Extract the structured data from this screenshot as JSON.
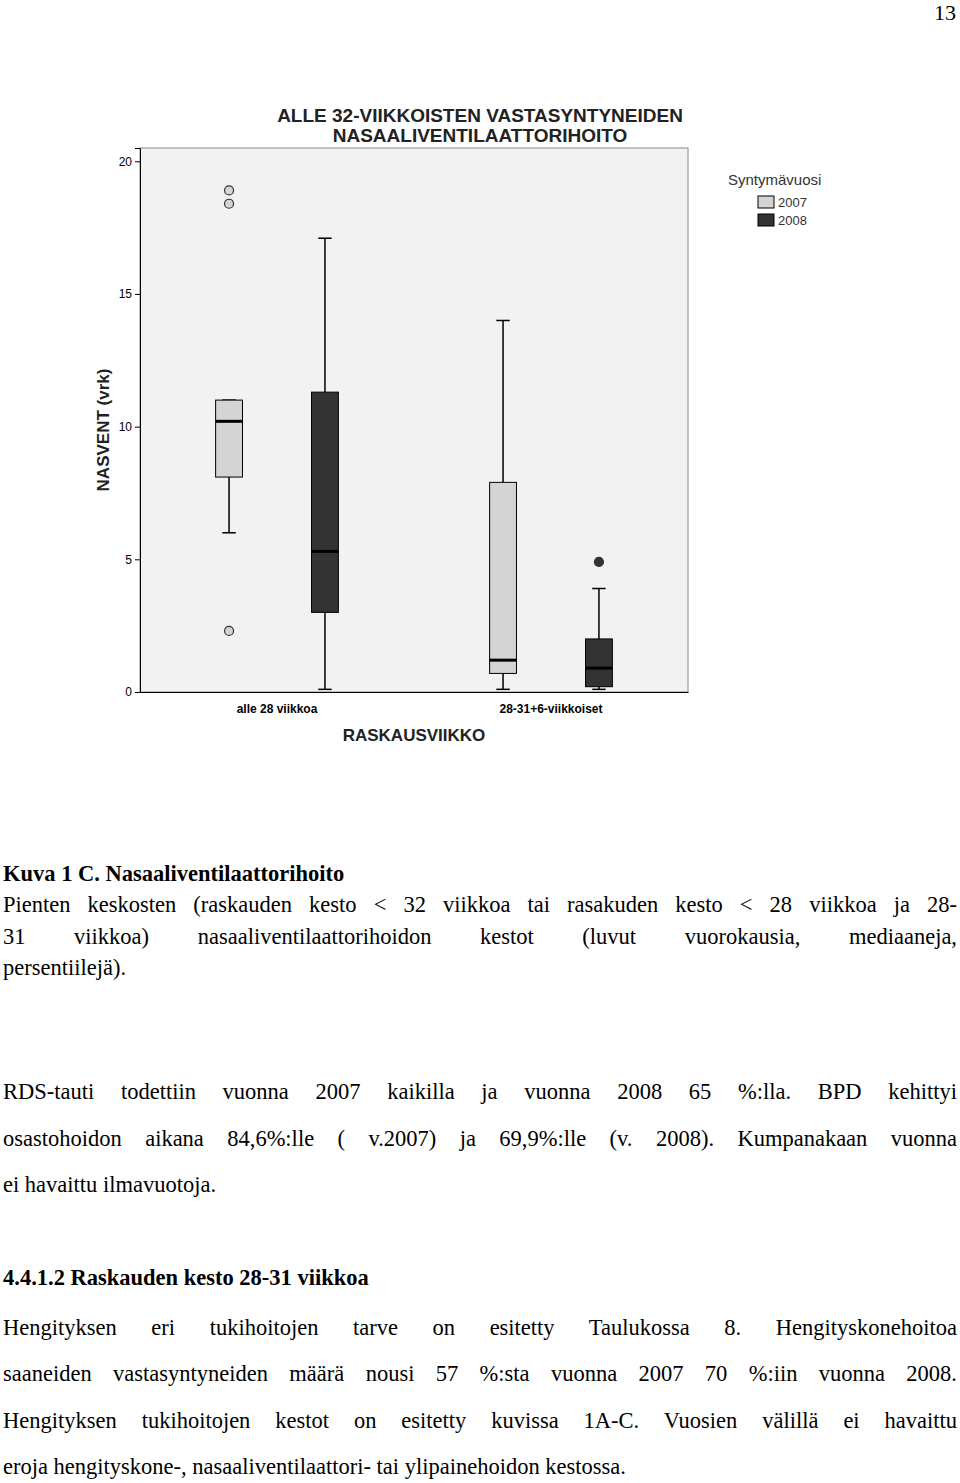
{
  "page_number": 13,
  "chart_data": {
    "type": "box",
    "title": [
      "ALLE 32-VIIKKOISTEN VASTASYNTYNEIDEN",
      "NASAALIVENTILAATTORIHOITO"
    ],
    "x_label": "RASKAUSVIIKKO",
    "y_label": "NASVENT (vrk)",
    "categories": [
      "alle 28 viikkoa",
      "28-31+6-viikkoiset"
    ],
    "legend_title": "Syntymävuosi",
    "legend": "right",
    "ylim": [
      0,
      20.5
    ],
    "yticks": [
      0,
      5,
      10,
      15,
      20
    ],
    "series": [
      {
        "name": "2007",
        "color": "#d4d4d4",
        "marker": "circle",
        "values": [
          {
            "low": 6.0,
            "q1": 8.1,
            "median": 10.2,
            "q3": 11.0,
            "high": 11.0,
            "outliers": [
              18.9,
              18.4,
              2.3
            ]
          },
          {
            "low": 0.1,
            "q1": 0.7,
            "median": 1.2,
            "q3": 7.9,
            "high": 14.0,
            "outliers": []
          }
        ]
      },
      {
        "name": "2008",
        "color": "#333333",
        "marker": "circle",
        "values": [
          {
            "low": 0.1,
            "q1": 3.0,
            "median": 5.3,
            "q3": 11.3,
            "high": 17.1,
            "outliers": []
          },
          {
            "low": 0.1,
            "q1": 0.2,
            "median": 0.9,
            "q3": 2.0,
            "high": 3.9,
            "outliers": [
              4.9
            ]
          }
        ]
      }
    ]
  },
  "caption": {
    "title": "Kuva 1 C. Nasaaliventilaattorihoito",
    "lines": [
      "Pienten keskosten (raskauden kesto < 32 viikkoa tai rasakuden kesto < 28 viikkoa ja 28-",
      "31 viikkoa) nasaaliventilaattorihoidon kestot (luvut vuorokausia, mediaaneja,",
      "persentiilejä)."
    ]
  },
  "paragraph_1": [
    "RDS-tauti todettiin vuonna 2007 kaikilla ja vuonna 2008 65 %:lla. BPD kehittyi",
    "osastohoidon aikana 84,6%:lle ( v.2007) ja 69,9%:lle (v. 2008). Kumpanakaan vuonna",
    "ei havaittu ilmavuotoja."
  ],
  "heading": "4.4.1.2 Raskauden kesto 28-31 viikkoa",
  "paragraph_2": [
    "Hengityksen eri tukihoitojen tarve on esitetty Taulukossa 8. Hengityskonehoitoa",
    "saaneiden vastasyntyneiden määrä nousi 57 %:sta vuonna 2007 70 %:iin vuonna 2008.",
    "Hengityksen tukihoitojen kestot on esitetty kuvissa 1A-C. Vuosien välillä ei havaittu",
    "eroja hengityskone-, nasaaliventilaattori- tai ylipainehoidon kestossa."
  ]
}
